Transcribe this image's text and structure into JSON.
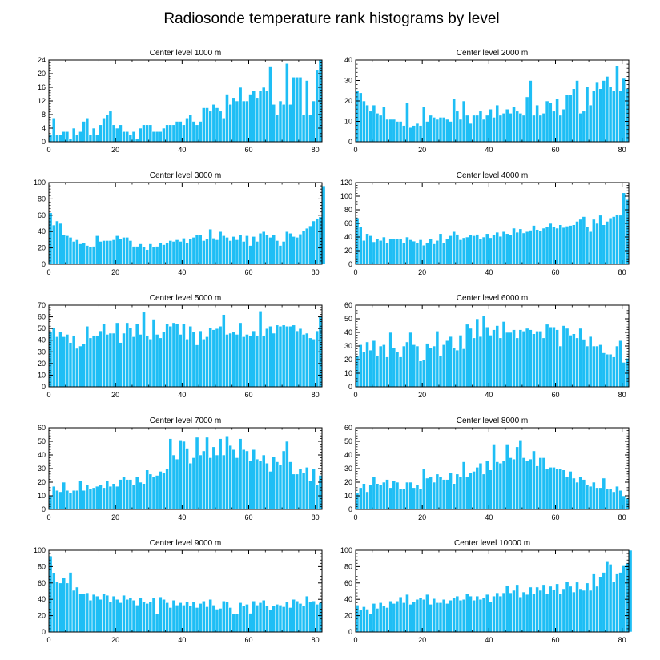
{
  "title": "Radiosonde temperature rank histograms by level",
  "colors": {
    "bar": "#1ebef5",
    "bar_edge": "#ffffff",
    "axis": "#000000"
  },
  "chart_data": [
    {
      "type": "bar",
      "title": "Center level 1000 m",
      "xlim": [
        0,
        82
      ],
      "ylim": [
        0,
        24
      ],
      "xticks": [
        0,
        20,
        40,
        60,
        80
      ],
      "yticks": [
        0,
        4,
        8,
        12,
        16,
        20,
        24
      ],
      "xlabel": "",
      "ylabel": "",
      "values": [
        2,
        7,
        2,
        2,
        3,
        3,
        1,
        4,
        2,
        3,
        6,
        7,
        2,
        4,
        2,
        5,
        7,
        8,
        9,
        5,
        4,
        5,
        3,
        3,
        2,
        3,
        1,
        4,
        5,
        5,
        5,
        3,
        3,
        3,
        4,
        5,
        5,
        5,
        6,
        6,
        5,
        7,
        8,
        6,
        5,
        6,
        10,
        10,
        9,
        11,
        10,
        9,
        7,
        14,
        11,
        13,
        12,
        16,
        12,
        12,
        14,
        15,
        13,
        15,
        16,
        15,
        22,
        11,
        8,
        12,
        11,
        23,
        11,
        19,
        19,
        19,
        8,
        18,
        8,
        12,
        21,
        24
      ],
      "estimated": true
    },
    {
      "type": "bar",
      "title": "Center level 2000 m",
      "xlim": [
        0,
        82
      ],
      "ylim": [
        0,
        40
      ],
      "xticks": [
        0,
        20,
        40,
        60,
        80
      ],
      "yticks": [
        0,
        10,
        20,
        30,
        40
      ],
      "xlabel": "",
      "ylabel": "",
      "values": [
        25,
        24,
        20,
        18,
        15,
        18,
        14,
        13,
        17,
        11,
        11,
        11,
        10,
        10,
        8,
        19,
        7,
        8,
        9,
        8,
        17,
        10,
        13,
        12,
        11,
        12,
        12,
        11,
        10,
        21,
        15,
        11,
        20,
        13,
        9,
        13,
        13,
        15,
        11,
        13,
        16,
        12,
        18,
        13,
        14,
        16,
        14,
        17,
        15,
        14,
        13,
        22,
        30,
        13,
        18,
        13,
        14,
        20,
        19,
        15,
        21,
        13,
        16,
        23,
        23,
        26,
        30,
        14,
        15,
        27,
        18,
        25,
        29,
        26,
        30,
        32,
        27,
        25,
        37,
        25,
        31,
        26
      ],
      "estimated": true
    },
    {
      "type": "bar",
      "title": "Center level 3000 m",
      "xlim": [
        0,
        82
      ],
      "ylim": [
        0,
        100
      ],
      "xticks": [
        0,
        20,
        40,
        60,
        80
      ],
      "yticks": [
        0,
        20,
        40,
        60,
        80,
        100
      ],
      "xlabel": "",
      "ylabel": "",
      "values": [
        63,
        48,
        53,
        50,
        36,
        35,
        33,
        28,
        30,
        25,
        26,
        23,
        21,
        22,
        35,
        28,
        29,
        29,
        29,
        30,
        35,
        31,
        33,
        33,
        29,
        22,
        22,
        25,
        21,
        18,
        25,
        21,
        22,
        26,
        24,
        26,
        29,
        28,
        30,
        28,
        32,
        26,
        31,
        33,
        36,
        36,
        29,
        31,
        43,
        32,
        30,
        40,
        35,
        33,
        29,
        34,
        30,
        36,
        28,
        35,
        23,
        34,
        28,
        38,
        40,
        36,
        33,
        36,
        29,
        23,
        28,
        40,
        38,
        34,
        33,
        37,
        41,
        44,
        47,
        53,
        56,
        58,
        96
      ],
      "estimated": true
    },
    {
      "type": "bar",
      "title": "Center level 4000 m",
      "xlim": [
        0,
        82
      ],
      "ylim": [
        0,
        120
      ],
      "xticks": [
        0,
        20,
        40,
        60,
        80
      ],
      "yticks": [
        0,
        20,
        40,
        60,
        80,
        100,
        120
      ],
      "xlabel": "",
      "ylabel": "",
      "values": [
        68,
        55,
        35,
        45,
        42,
        33,
        38,
        35,
        40,
        32,
        38,
        38,
        38,
        37,
        32,
        40,
        36,
        34,
        32,
        36,
        28,
        32,
        38,
        30,
        35,
        45,
        32,
        37,
        42,
        48,
        44,
        36,
        39,
        40,
        43,
        42,
        44,
        38,
        40,
        45,
        39,
        43,
        47,
        41,
        48,
        45,
        43,
        53,
        47,
        52,
        46,
        48,
        50,
        57,
        51,
        49,
        53,
        55,
        60,
        55,
        53,
        58,
        54,
        56,
        57,
        58,
        63,
        66,
        70,
        55,
        48,
        66,
        60,
        72,
        58,
        63,
        68,
        70,
        73,
        72,
        105,
        95
      ],
      "estimated": true
    },
    {
      "type": "bar",
      "title": "Center level 5000 m",
      "xlim": [
        0,
        82
      ],
      "ylim": [
        0,
        70
      ],
      "xticks": [
        0,
        20,
        40,
        60,
        80
      ],
      "yticks": [
        0,
        10,
        20,
        30,
        40,
        50,
        60,
        70
      ],
      "xlabel": "",
      "ylabel": "",
      "values": [
        47,
        51,
        43,
        47,
        43,
        45,
        38,
        44,
        33,
        35,
        37,
        52,
        42,
        44,
        44,
        48,
        54,
        45,
        46,
        46,
        55,
        38,
        46,
        55,
        51,
        43,
        54,
        45,
        64,
        44,
        41,
        58,
        45,
        42,
        47,
        54,
        52,
        55,
        54,
        45,
        54,
        41,
        52,
        47,
        36,
        48,
        41,
        43,
        51,
        49,
        50,
        52,
        62,
        45,
        46,
        47,
        45,
        55,
        43,
        45,
        44,
        48,
        44,
        65,
        44,
        50,
        52,
        46,
        53,
        52,
        53,
        52,
        52,
        53,
        48,
        50,
        45,
        46,
        42,
        41,
        48,
        60
      ],
      "estimated": true
    },
    {
      "type": "bar",
      "title": "Center level 6000 m",
      "xlim": [
        0,
        82
      ],
      "ylim": [
        0,
        60
      ],
      "xticks": [
        0,
        20,
        40,
        60,
        80
      ],
      "yticks": [
        0,
        10,
        20,
        30,
        40,
        50,
        60
      ],
      "xlabel": "",
      "ylabel": "",
      "values": [
        23,
        31,
        26,
        33,
        27,
        34,
        23,
        30,
        31,
        22,
        40,
        29,
        26,
        22,
        30,
        33,
        40,
        31,
        30,
        19,
        20,
        32,
        29,
        30,
        41,
        23,
        31,
        34,
        37,
        29,
        27,
        38,
        28,
        46,
        43,
        36,
        50,
        37,
        52,
        44,
        38,
        42,
        45,
        36,
        48,
        40,
        40,
        42,
        36,
        42,
        41,
        43,
        42,
        39,
        41,
        41,
        36,
        46,
        44,
        44,
        42,
        30,
        45,
        43,
        38,
        39,
        36,
        43,
        35,
        30,
        37,
        30,
        30,
        31,
        25,
        24,
        24,
        22,
        30,
        34,
        18,
        21
      ],
      "estimated": true
    },
    {
      "type": "bar",
      "title": "Center level 7000 m",
      "xlim": [
        0,
        82
      ],
      "ylim": [
        0,
        60
      ],
      "xticks": [
        0,
        20,
        40,
        60,
        80
      ],
      "yticks": [
        0,
        10,
        20,
        30,
        40,
        50,
        60
      ],
      "xlabel": "",
      "ylabel": "",
      "values": [
        10,
        17,
        14,
        13,
        20,
        14,
        12,
        14,
        14,
        21,
        14,
        18,
        15,
        16,
        17,
        18,
        16,
        21,
        17,
        19,
        17,
        22,
        24,
        22,
        22,
        18,
        24,
        20,
        19,
        29,
        26,
        24,
        25,
        28,
        27,
        30,
        52,
        40,
        37,
        51,
        50,
        45,
        34,
        38,
        53,
        40,
        43,
        53,
        38,
        46,
        40,
        52,
        40,
        54,
        47,
        44,
        38,
        52,
        44,
        43,
        36,
        44,
        37,
        36,
        40,
        34,
        28,
        39,
        35,
        33,
        43,
        50,
        35,
        26,
        26,
        30,
        27,
        31,
        21,
        30,
        18,
        25
      ],
      "estimated": true
    },
    {
      "type": "bar",
      "title": "Center level 8000 m",
      "xlim": [
        0,
        82
      ],
      "ylim": [
        0,
        60
      ],
      "xticks": [
        0,
        20,
        40,
        60,
        80
      ],
      "yticks": [
        0,
        10,
        20,
        30,
        40,
        50,
        60
      ],
      "xlabel": "",
      "ylabel": "",
      "values": [
        12,
        16,
        19,
        13,
        18,
        24,
        19,
        18,
        20,
        22,
        16,
        21,
        20,
        15,
        15,
        20,
        20,
        16,
        18,
        15,
        30,
        23,
        24,
        20,
        26,
        24,
        22,
        22,
        27,
        19,
        26,
        24,
        35,
        24,
        27,
        28,
        31,
        34,
        26,
        36,
        29,
        48,
        35,
        34,
        36,
        48,
        38,
        37,
        46,
        51,
        38,
        36,
        37,
        43,
        32,
        38,
        38,
        30,
        31,
        31,
        30,
        30,
        29,
        24,
        28,
        23,
        20,
        24,
        22,
        18,
        17,
        20,
        16,
        16,
        23,
        15,
        15,
        13,
        17,
        14,
        10,
        8
      ],
      "estimated": true
    },
    {
      "type": "bar",
      "title": "Center level 9000 m",
      "xlim": [
        0,
        82
      ],
      "ylim": [
        0,
        100
      ],
      "xticks": [
        0,
        20,
        40,
        60,
        80
      ],
      "yticks": [
        0,
        20,
        40,
        60,
        80,
        100
      ],
      "xlabel": "",
      "ylabel": "",
      "values": [
        93,
        72,
        62,
        60,
        66,
        60,
        73,
        51,
        55,
        47,
        47,
        48,
        39,
        46,
        44,
        40,
        47,
        45,
        37,
        44,
        40,
        36,
        45,
        40,
        42,
        39,
        33,
        42,
        37,
        35,
        37,
        42,
        22,
        43,
        40,
        36,
        30,
        39,
        33,
        36,
        33,
        37,
        32,
        37,
        30,
        35,
        38,
        31,
        40,
        33,
        28,
        29,
        38,
        37,
        30,
        22,
        22,
        36,
        32,
        34,
        23,
        38,
        33,
        36,
        39,
        32,
        27,
        32,
        34,
        33,
        31,
        37,
        30,
        40,
        38,
        35,
        32,
        44,
        37,
        38,
        34,
        36
      ],
      "estimated": true
    },
    {
      "type": "bar",
      "title": "Center level 10000 m",
      "xlim": [
        0,
        82
      ],
      "ylim": [
        0,
        100
      ],
      "xticks": [
        0,
        20,
        40,
        60,
        80
      ],
      "yticks": [
        0,
        20,
        40,
        60,
        80,
        100
      ],
      "xlabel": "",
      "ylabel": "",
      "values": [
        33,
        27,
        31,
        28,
        22,
        35,
        29,
        36,
        32,
        30,
        38,
        35,
        38,
        43,
        36,
        46,
        34,
        37,
        40,
        42,
        40,
        46,
        34,
        41,
        36,
        36,
        40,
        35,
        39,
        42,
        44,
        39,
        40,
        47,
        44,
        39,
        44,
        40,
        42,
        46,
        37,
        44,
        48,
        44,
        48,
        57,
        48,
        51,
        58,
        43,
        49,
        46,
        55,
        47,
        55,
        51,
        58,
        47,
        56,
        52,
        59,
        47,
        53,
        62,
        56,
        49,
        61,
        53,
        51,
        60,
        51,
        71,
        56,
        67,
        73,
        86,
        83,
        62,
        71,
        73,
        81,
        84,
        100
      ],
      "estimated": true
    }
  ]
}
